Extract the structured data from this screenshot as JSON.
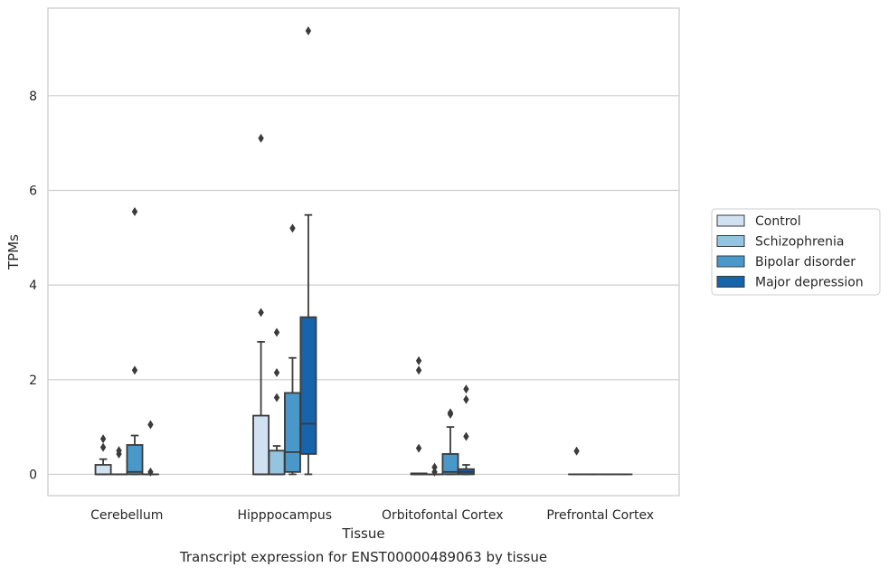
{
  "chart_data": {
    "type": "box",
    "xlabel": "Tissue",
    "ylabel": "TPMs",
    "caption": "Transcript expression for ENST00000489063 by tissue",
    "categories": [
      "Cerebellum",
      "Hipppocampus",
      "Orbitofontal Cortex",
      "Prefrontal Cortex"
    ],
    "ylim": [
      -0.45,
      9.85
    ],
    "yticks": [
      0,
      2,
      4,
      6,
      8
    ],
    "grid": "horizontal",
    "legend_position": "right",
    "series": [
      {
        "name": "Control",
        "color": "#d0e1f2",
        "boxes": [
          {
            "q1": 0.0,
            "median": 0.0,
            "q3": 0.2,
            "whisker_low": 0.0,
            "whisker_high": 0.32,
            "outliers": [
              0.57,
              0.75
            ]
          },
          {
            "q1": 0.0,
            "median": 0.0,
            "q3": 1.24,
            "whisker_low": 0.0,
            "whisker_high": 2.8,
            "outliers": [
              3.42,
              7.1
            ]
          },
          {
            "q1": 0.0,
            "median": 0.0,
            "q3": 0.02,
            "whisker_low": 0.0,
            "whisker_high": 0.02,
            "outliers": [
              0.55,
              2.2,
              2.4
            ]
          },
          {
            "q1": 0.0,
            "median": 0.0,
            "q3": 0.0,
            "whisker_low": 0.0,
            "whisker_high": 0.0,
            "outliers": [
              0.49
            ]
          }
        ]
      },
      {
        "name": "Schizophrenia",
        "color": "#94c4df",
        "boxes": [
          {
            "q1": 0.0,
            "median": 0.0,
            "q3": 0.0,
            "whisker_low": 0.0,
            "whisker_high": 0.0,
            "outliers": [
              0.43,
              0.5
            ]
          },
          {
            "q1": 0.0,
            "median": 0.0,
            "q3": 0.5,
            "whisker_low": 0.0,
            "whisker_high": 0.6,
            "outliers": [
              1.62,
              2.15,
              3.0
            ]
          },
          {
            "q1": 0.0,
            "median": 0.0,
            "q3": 0.0,
            "whisker_low": 0.0,
            "whisker_high": 0.0,
            "outliers": [
              0.05,
              0.15
            ]
          },
          {
            "q1": 0.0,
            "median": 0.0,
            "q3": 0.0,
            "whisker_low": 0.0,
            "whisker_high": 0.0,
            "outliers": []
          }
        ]
      },
      {
        "name": "Bipolar disorder",
        "color": "#4a98c9",
        "boxes": [
          {
            "q1": 0.0,
            "median": 0.05,
            "q3": 0.62,
            "whisker_low": 0.0,
            "whisker_high": 0.82,
            "outliers": [
              2.2,
              5.55
            ]
          },
          {
            "q1": 0.05,
            "median": 0.47,
            "q3": 1.72,
            "whisker_low": 0.0,
            "whisker_high": 2.46,
            "outliers": [
              5.2
            ]
          },
          {
            "q1": 0.0,
            "median": 0.05,
            "q3": 0.43,
            "whisker_low": 0.0,
            "whisker_high": 1.0,
            "outliers": [
              1.27,
              1.3
            ]
          },
          {
            "q1": 0.0,
            "median": 0.0,
            "q3": 0.0,
            "whisker_low": 0.0,
            "whisker_high": 0.0,
            "outliers": []
          }
        ]
      },
      {
        "name": "Major depression",
        "color": "#1764ab",
        "boxes": [
          {
            "q1": 0.0,
            "median": 0.0,
            "q3": 0.0,
            "whisker_low": 0.0,
            "whisker_high": 0.0,
            "outliers": [
              0.05,
              1.05
            ]
          },
          {
            "q1": 0.43,
            "median": 1.07,
            "q3": 3.32,
            "whisker_low": 0.0,
            "whisker_high": 5.48,
            "outliers": [
              9.37
            ]
          },
          {
            "q1": 0.0,
            "median": 0.05,
            "q3": 0.11,
            "whisker_low": 0.0,
            "whisker_high": 0.2,
            "outliers": [
              0.8,
              1.58,
              1.8
            ]
          },
          {
            "q1": 0.0,
            "median": 0.0,
            "q3": 0.0,
            "whisker_low": 0.0,
            "whisker_high": 0.0,
            "outliers": []
          }
        ]
      }
    ]
  }
}
